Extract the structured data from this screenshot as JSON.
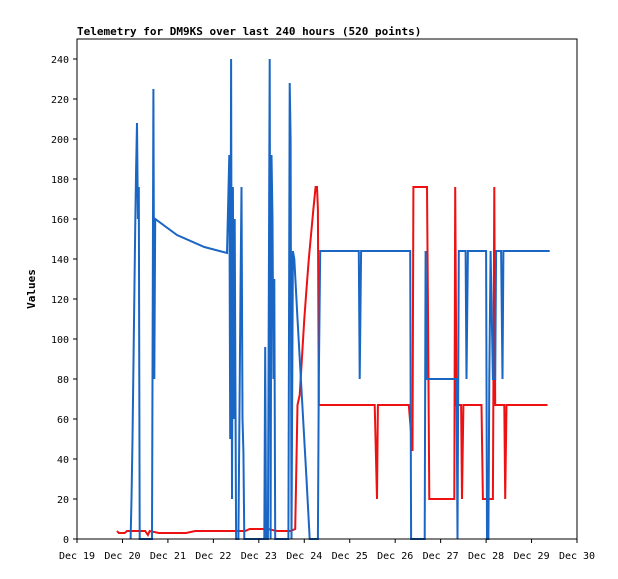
{
  "chart_data": {
    "type": "line",
    "title": "Telemetry for DM9KS over last 240 hours (520 points)",
    "ylabel": "Values",
    "xlabel": "",
    "ylim": [
      0,
      250
    ],
    "xlim": [
      "Dec 19",
      "Dec 30"
    ],
    "grid": false,
    "y_ticks": [
      0,
      20,
      40,
      60,
      80,
      100,
      120,
      140,
      160,
      180,
      200,
      220,
      240
    ],
    "x_ticks": [
      "Dec 19",
      "Dec 20",
      "Dec 21",
      "Dec 22",
      "Dec 23",
      "Dec 24",
      "Dec 25",
      "Dec 26",
      "Dec 27",
      "Dec 28",
      "Dec 29",
      "Dec 30"
    ],
    "series": [
      {
        "color": "#ee1111",
        "points": [
          [
            0.88,
            4
          ],
          [
            0.92,
            3
          ],
          [
            1.05,
            3
          ],
          [
            1.1,
            4
          ],
          [
            1.3,
            4
          ],
          [
            1.5,
            4
          ],
          [
            1.56,
            2
          ],
          [
            1.6,
            4
          ],
          [
            1.8,
            3
          ],
          [
            2.1,
            3
          ],
          [
            2.4,
            3
          ],
          [
            2.6,
            4
          ],
          [
            3.0,
            4
          ],
          [
            3.4,
            4
          ],
          [
            3.7,
            4
          ],
          [
            3.8,
            5
          ],
          [
            4.2,
            5
          ],
          [
            4.4,
            4
          ],
          [
            4.7,
            4
          ],
          [
            4.8,
            5
          ],
          [
            4.85,
            67
          ],
          [
            4.9,
            72
          ],
          [
            5.0,
            110
          ],
          [
            5.05,
            125
          ],
          [
            5.1,
            140
          ],
          [
            5.2,
            165
          ],
          [
            5.25,
            176
          ],
          [
            5.28,
            176
          ],
          [
            5.3,
            165
          ],
          [
            5.32,
            67
          ],
          [
            5.5,
            67
          ],
          [
            5.8,
            67
          ],
          [
            6.0,
            67
          ],
          [
            6.3,
            67
          ],
          [
            6.55,
            67
          ],
          [
            6.6,
            20
          ],
          [
            6.62,
            67
          ],
          [
            6.8,
            67
          ],
          [
            7.0,
            67
          ],
          [
            7.3,
            67
          ],
          [
            7.38,
            44
          ],
          [
            7.4,
            176
          ],
          [
            7.5,
            176
          ],
          [
            7.7,
            176
          ],
          [
            7.72,
            120
          ],
          [
            7.75,
            20
          ],
          [
            8.0,
            20
          ],
          [
            8.25,
            20
          ],
          [
            8.3,
            20
          ],
          [
            8.32,
            176
          ],
          [
            8.35,
            67
          ],
          [
            8.45,
            67
          ],
          [
            8.47,
            20
          ],
          [
            8.5,
            67
          ],
          [
            8.7,
            67
          ],
          [
            8.9,
            67
          ],
          [
            8.93,
            20
          ],
          [
            9.0,
            20
          ],
          [
            9.15,
            20
          ],
          [
            9.18,
            176
          ],
          [
            9.2,
            67
          ],
          [
            9.3,
            67
          ],
          [
            9.35,
            67
          ],
          [
            9.4,
            67
          ],
          [
            9.42,
            20
          ],
          [
            9.45,
            67
          ],
          [
            9.6,
            67
          ],
          [
            9.8,
            67
          ],
          [
            10.0,
            67
          ],
          [
            10.2,
            67
          ],
          [
            10.35,
            67
          ]
        ]
      },
      {
        "color": "#1a66c4",
        "points": [
          [
            1.18,
            0
          ],
          [
            1.2,
            20
          ],
          [
            1.22,
            50
          ],
          [
            1.24,
            85
          ],
          [
            1.26,
            120
          ],
          [
            1.28,
            155
          ],
          [
            1.3,
            185
          ],
          [
            1.32,
            208
          ],
          [
            1.34,
            160
          ],
          [
            1.36,
            176
          ],
          [
            1.38,
            0
          ],
          [
            1.45,
            0
          ],
          [
            1.6,
            0
          ],
          [
            1.65,
            0
          ],
          [
            1.68,
            225
          ],
          [
            1.7,
            80
          ],
          [
            1.72,
            160
          ],
          [
            2.2,
            152
          ],
          [
            2.8,
            146
          ],
          [
            3.3,
            143
          ],
          [
            3.35,
            192
          ],
          [
            3.37,
            50
          ],
          [
            3.39,
            240
          ],
          [
            3.41,
            20
          ],
          [
            3.43,
            176
          ],
          [
            3.45,
            60
          ],
          [
            3.47,
            160
          ],
          [
            3.5,
            0
          ],
          [
            3.55,
            0
          ],
          [
            3.6,
            130
          ],
          [
            3.62,
            176
          ],
          [
            3.64,
            60
          ],
          [
            3.66,
            44
          ],
          [
            3.68,
            0
          ],
          [
            3.85,
            0
          ],
          [
            3.9,
            0
          ],
          [
            4.12,
            0
          ],
          [
            4.14,
            96
          ],
          [
            4.16,
            0
          ],
          [
            4.2,
            0
          ],
          [
            4.24,
            240
          ],
          [
            4.26,
            0
          ],
          [
            4.28,
            192
          ],
          [
            4.3,
            160
          ],
          [
            4.32,
            80
          ],
          [
            4.34,
            130
          ],
          [
            4.36,
            0
          ],
          [
            4.5,
            0
          ],
          [
            4.65,
            0
          ],
          [
            4.68,
            228
          ],
          [
            4.7,
            200
          ],
          [
            4.72,
            0
          ],
          [
            4.75,
            144
          ],
          [
            4.78,
            140
          ],
          [
            4.85,
            110
          ],
          [
            4.95,
            70
          ],
          [
            5.05,
            30
          ],
          [
            5.12,
            0
          ],
          [
            5.3,
            0
          ],
          [
            5.32,
            80
          ],
          [
            5.35,
            144
          ],
          [
            5.5,
            144
          ],
          [
            6.0,
            144
          ],
          [
            6.2,
            144
          ],
          [
            6.22,
            80
          ],
          [
            6.25,
            144
          ],
          [
            6.6,
            144
          ],
          [
            7.0,
            144
          ],
          [
            7.33,
            144
          ],
          [
            7.35,
            0
          ],
          [
            7.5,
            0
          ],
          [
            7.65,
            0
          ],
          [
            7.67,
            144
          ],
          [
            7.7,
            80
          ],
          [
            7.9,
            80
          ],
          [
            8.2,
            80
          ],
          [
            8.35,
            80
          ],
          [
            8.37,
            0
          ],
          [
            8.4,
            144
          ],
          [
            8.55,
            144
          ],
          [
            8.57,
            80
          ],
          [
            8.6,
            144
          ],
          [
            8.75,
            144
          ],
          [
            9.0,
            144
          ],
          [
            9.02,
            0
          ],
          [
            9.05,
            0
          ],
          [
            9.07,
            80
          ],
          [
            9.1,
            144
          ],
          [
            9.15,
            80
          ],
          [
            9.2,
            80
          ],
          [
            9.22,
            144
          ],
          [
            9.3,
            144
          ],
          [
            9.33,
            144
          ],
          [
            9.36,
            80
          ],
          [
            9.38,
            144
          ],
          [
            9.6,
            144
          ],
          [
            9.8,
            144
          ],
          [
            10.0,
            144
          ],
          [
            10.2,
            144
          ],
          [
            10.4,
            144
          ]
        ]
      },
      {
        "color": "#000000",
        "points": [
          [
            0.6,
            0
          ],
          [
            1.0,
            0
          ],
          [
            2.0,
            0
          ],
          [
            3.0,
            0
          ],
          [
            4.0,
            0
          ],
          [
            5.0,
            0
          ],
          [
            6.0,
            0
          ],
          [
            7.0,
            0
          ],
          [
            8.0,
            0
          ],
          [
            9.0,
            0
          ],
          [
            10.0,
            0
          ],
          [
            10.4,
            0
          ]
        ]
      }
    ]
  }
}
